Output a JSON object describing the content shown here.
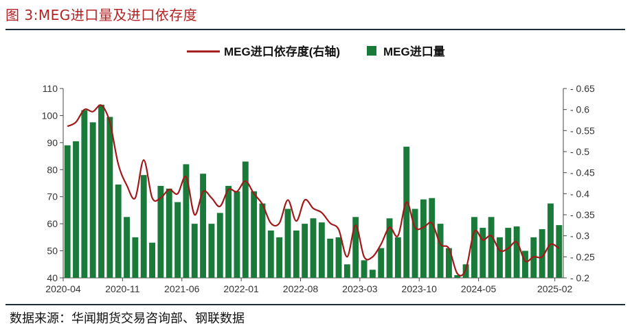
{
  "header": {
    "title": "图 3:MEG进口量及进口依存度"
  },
  "footer": {
    "source": "数据来源：华闻期货交易咨询部、钢联数据"
  },
  "chart_data": {
    "type": "bar+line",
    "legend": [
      "MEG进口依存度(右轴)",
      "MEG进口量"
    ],
    "legend_position": "top-center",
    "colors": {
      "bar": "#1a7a3a",
      "line": "#a01818"
    },
    "x_tick_labels": [
      "2020-04",
      "2020-11",
      "2021-06",
      "2022-01",
      "2022-08",
      "2023-03",
      "2023-10",
      "2024-05",
      "2025-02"
    ],
    "y_left": {
      "min": 40,
      "max": 110,
      "ticks": [
        40,
        50,
        60,
        70,
        80,
        90,
        100,
        110
      ]
    },
    "y_right": {
      "min": 0.2,
      "max": 0.65,
      "ticks": [
        "0.2",
        "0.25",
        "0.3",
        "0.35",
        "0.4",
        "0.45",
        "0.5",
        "0.55",
        "0.6",
        "0.65"
      ]
    },
    "months": [
      "2020-04",
      "2020-05",
      "2020-06",
      "2020-07",
      "2020-08",
      "2020-09",
      "2020-10",
      "2020-11",
      "2020-12",
      "2021-01",
      "2021-02",
      "2021-03",
      "2021-04",
      "2021-05",
      "2021-06",
      "2021-07",
      "2021-08",
      "2021-09",
      "2021-10",
      "2021-11",
      "2021-12",
      "2022-01",
      "2022-02",
      "2022-03",
      "2022-04",
      "2022-05",
      "2022-06",
      "2022-07",
      "2022-08",
      "2022-09",
      "2022-10",
      "2022-11",
      "2022-12",
      "2023-01",
      "2023-02",
      "2023-03",
      "2023-04",
      "2023-05",
      "2023-06",
      "2023-07",
      "2023-08",
      "2023-09",
      "2023-10",
      "2023-11",
      "2023-12",
      "2024-01",
      "2024-02",
      "2024-03",
      "2024-04",
      "2024-05",
      "2024-06",
      "2024-07",
      "2024-08",
      "2024-09",
      "2024-10",
      "2024-11",
      "2024-12",
      "2025-01",
      "2025-02"
    ],
    "series": [
      {
        "name": "MEG进口量",
        "type": "bar",
        "axis": "left",
        "values": [
          89,
          90.5,
          102,
          97.5,
          104,
          99.5,
          74.5,
          62.5,
          55,
          78,
          53,
          74,
          73,
          68,
          82,
          60,
          78.5,
          60,
          64,
          74,
          72,
          83,
          72,
          67.5,
          57.5,
          55,
          65.5,
          57.5,
          60,
          62,
          60.5,
          54.5,
          55,
          45,
          62.5,
          46.5,
          43,
          51,
          62,
          55,
          88.5,
          65.5,
          69,
          69.5,
          60,
          51,
          41,
          45,
          62.5,
          58.5,
          62.5,
          55,
          58.5,
          59,
          50,
          55,
          58,
          67.5,
          59.5
        ]
      },
      {
        "name": "MEG进口依存度(右轴)",
        "type": "line",
        "axis": "right",
        "values": [
          0.56,
          0.57,
          0.6,
          0.595,
          0.61,
          0.57,
          0.47,
          0.42,
          0.39,
          0.48,
          0.39,
          0.39,
          0.41,
          0.4,
          0.44,
          0.35,
          0.405,
          0.39,
          0.37,
          0.41,
          0.405,
          0.43,
          0.4,
          0.375,
          0.33,
          0.33,
          0.385,
          0.335,
          0.385,
          0.365,
          0.355,
          0.33,
          0.315,
          0.25,
          0.325,
          0.25,
          0.25,
          0.28,
          0.32,
          0.3,
          0.38,
          0.32,
          0.32,
          0.33,
          0.28,
          0.27,
          0.21,
          0.22,
          0.31,
          0.29,
          0.3,
          0.265,
          0.27,
          0.285,
          0.24,
          0.25,
          0.25,
          0.28,
          0.27
        ]
      }
    ]
  }
}
